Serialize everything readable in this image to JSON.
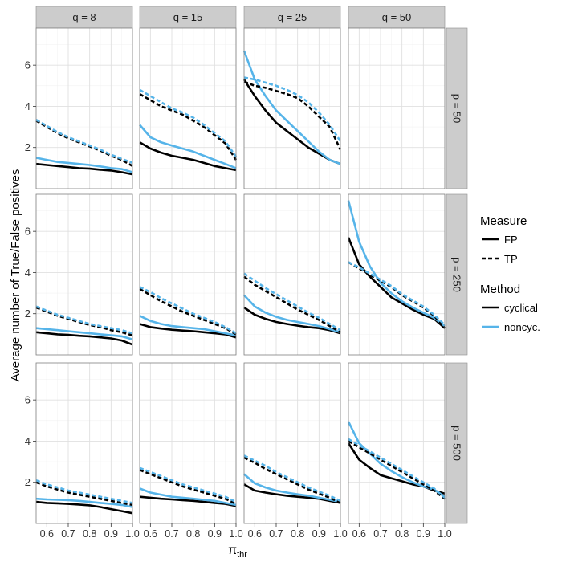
{
  "chart_data": {
    "type": "line",
    "title": "",
    "ylabel": "Average number of True/False positives",
    "xlabel_main": "π",
    "xlabel_sub": "thr",
    "xlim": [
      0.55,
      1.0
    ],
    "ylim": [
      0,
      7.8
    ],
    "x_ticks": [
      0.6,
      0.7,
      0.8,
      0.9,
      1.0
    ],
    "x_tick_labels": [
      "0.6",
      "0.7",
      "0.8",
      "0.9",
      "1.0"
    ],
    "y_ticks": [
      2,
      4,
      6
    ],
    "y_tick_labels": [
      "2",
      "4",
      "6"
    ],
    "col_labels": [
      "q = 8",
      "q = 15",
      "q = 25",
      "q = 50"
    ],
    "row_labels": [
      "p = 50",
      "p = 250",
      "p = 500"
    ],
    "x": [
      0.55,
      0.6,
      0.65,
      0.7,
      0.75,
      0.8,
      0.85,
      0.9,
      0.95,
      1.0
    ],
    "legend": {
      "measure_title": "Measure",
      "measure_items": [
        "FP",
        "TP"
      ],
      "method_title": "Method",
      "method_items": [
        "cyclical",
        "noncyc."
      ]
    },
    "colors": {
      "cyclical": "#000000",
      "noncyc": "#56B4E9"
    },
    "panels": [
      {
        "row": 0,
        "col": 0,
        "series": [
          {
            "method": "cyclical",
            "measure": "FP",
            "values": [
              1.2,
              1.15,
              1.1,
              1.05,
              1.0,
              0.97,
              0.92,
              0.88,
              0.8,
              0.7
            ]
          },
          {
            "method": "noncyc",
            "measure": "FP",
            "values": [
              1.5,
              1.4,
              1.3,
              1.25,
              1.2,
              1.15,
              1.08,
              1.0,
              0.95,
              0.8
            ]
          },
          {
            "method": "cyclical",
            "measure": "TP",
            "values": [
              3.3,
              3.0,
              2.7,
              2.45,
              2.25,
              2.05,
              1.85,
              1.6,
              1.4,
              1.1
            ]
          },
          {
            "method": "noncyc",
            "measure": "TP",
            "values": [
              3.35,
              3.05,
              2.75,
              2.5,
              2.3,
              2.1,
              1.9,
              1.65,
              1.45,
              1.25
            ]
          }
        ]
      },
      {
        "row": 0,
        "col": 1,
        "series": [
          {
            "method": "cyclical",
            "measure": "FP",
            "values": [
              2.25,
              1.95,
              1.75,
              1.6,
              1.5,
              1.4,
              1.25,
              1.1,
              1.0,
              0.9
            ]
          },
          {
            "method": "noncyc",
            "measure": "FP",
            "values": [
              3.1,
              2.5,
              2.25,
              2.1,
              1.95,
              1.8,
              1.6,
              1.4,
              1.2,
              1.0
            ]
          },
          {
            "method": "cyclical",
            "measure": "TP",
            "values": [
              4.6,
              4.3,
              4.0,
              3.8,
              3.6,
              3.3,
              3.0,
              2.6,
              2.2,
              1.4
            ]
          },
          {
            "method": "noncyc",
            "measure": "TP",
            "values": [
              4.8,
              4.5,
              4.2,
              3.9,
              3.7,
              3.45,
              3.1,
              2.7,
              2.3,
              1.55
            ]
          }
        ]
      },
      {
        "row": 0,
        "col": 2,
        "series": [
          {
            "method": "cyclical",
            "measure": "FP",
            "values": [
              5.3,
              4.5,
              3.8,
              3.2,
              2.8,
              2.4,
              2.0,
              1.7,
              1.4,
              1.2
            ]
          },
          {
            "method": "noncyc",
            "measure": "FP",
            "values": [
              6.7,
              5.3,
              4.5,
              3.8,
              3.3,
              2.8,
              2.3,
              1.8,
              1.4,
              1.2
            ]
          },
          {
            "method": "cyclical",
            "measure": "TP",
            "values": [
              5.2,
              5.0,
              4.9,
              4.75,
              4.6,
              4.4,
              4.0,
              3.5,
              3.0,
              1.9
            ]
          },
          {
            "method": "noncyc",
            "measure": "TP",
            "values": [
              5.4,
              5.3,
              5.15,
              5.0,
              4.8,
              4.55,
              4.2,
              3.7,
              3.1,
              2.3
            ]
          }
        ]
      },
      {
        "row": 0,
        "col": 3,
        "series": []
      },
      {
        "row": 1,
        "col": 0,
        "series": [
          {
            "method": "cyclical",
            "measure": "FP",
            "values": [
              1.1,
              1.05,
              1.0,
              0.97,
              0.93,
              0.9,
              0.85,
              0.8,
              0.7,
              0.5
            ]
          },
          {
            "method": "noncyc",
            "measure": "FP",
            "values": [
              1.3,
              1.25,
              1.2,
              1.15,
              1.1,
              1.05,
              1.0,
              0.95,
              0.9,
              0.75
            ]
          },
          {
            "method": "cyclical",
            "measure": "TP",
            "values": [
              2.3,
              2.1,
              1.9,
              1.75,
              1.6,
              1.45,
              1.35,
              1.2,
              1.1,
              0.95
            ]
          },
          {
            "method": "noncyc",
            "measure": "TP",
            "values": [
              2.35,
              2.15,
              1.95,
              1.8,
              1.65,
              1.5,
              1.4,
              1.3,
              1.2,
              1.05
            ]
          }
        ]
      },
      {
        "row": 1,
        "col": 1,
        "series": [
          {
            "method": "cyclical",
            "measure": "FP",
            "values": [
              1.5,
              1.35,
              1.28,
              1.22,
              1.18,
              1.15,
              1.1,
              1.05,
              1.0,
              0.85
            ]
          },
          {
            "method": "noncyc",
            "measure": "FP",
            "values": [
              1.9,
              1.65,
              1.5,
              1.4,
              1.35,
              1.3,
              1.25,
              1.15,
              1.05,
              0.95
            ]
          },
          {
            "method": "cyclical",
            "measure": "TP",
            "values": [
              3.2,
              2.9,
              2.6,
              2.35,
              2.1,
              1.9,
              1.7,
              1.5,
              1.3,
              1.0
            ]
          },
          {
            "method": "noncyc",
            "measure": "TP",
            "values": [
              3.3,
              3.05,
              2.75,
              2.5,
              2.25,
              2.0,
              1.8,
              1.6,
              1.35,
              1.05
            ]
          }
        ]
      },
      {
        "row": 1,
        "col": 2,
        "series": [
          {
            "method": "cyclical",
            "measure": "FP",
            "values": [
              2.3,
              1.95,
              1.75,
              1.6,
              1.5,
              1.42,
              1.35,
              1.3,
              1.2,
              1.05
            ]
          },
          {
            "method": "noncyc",
            "measure": "FP",
            "values": [
              2.9,
              2.35,
              2.05,
              1.85,
              1.7,
              1.6,
              1.5,
              1.4,
              1.25,
              1.1
            ]
          },
          {
            "method": "cyclical",
            "measure": "TP",
            "values": [
              3.8,
              3.4,
              3.1,
              2.8,
              2.5,
              2.2,
              1.95,
              1.7,
              1.4,
              1.1
            ]
          },
          {
            "method": "noncyc",
            "measure": "TP",
            "values": [
              3.95,
              3.6,
              3.25,
              2.95,
              2.65,
              2.35,
              2.05,
              1.8,
              1.5,
              1.2
            ]
          }
        ]
      },
      {
        "row": 1,
        "col": 3,
        "series": [
          {
            "method": "cyclical",
            "measure": "FP",
            "values": [
              5.7,
              4.4,
              3.8,
              3.3,
              2.8,
              2.5,
              2.2,
              1.95,
              1.75,
              1.3
            ]
          },
          {
            "method": "noncyc",
            "measure": "FP",
            "values": [
              7.5,
              5.5,
              4.3,
              3.5,
              3.0,
              2.6,
              2.3,
              2.05,
              1.8,
              1.4
            ]
          },
          {
            "method": "cyclical",
            "measure": "TP",
            "values": [
              4.5,
              4.2,
              3.9,
              3.6,
              3.3,
              2.9,
              2.6,
              2.3,
              1.9,
              1.3
            ]
          },
          {
            "method": "noncyc",
            "measure": "TP",
            "values": [
              4.5,
              4.25,
              3.95,
              3.65,
              3.35,
              2.95,
              2.65,
              2.35,
              1.95,
              1.45
            ]
          }
        ]
      },
      {
        "row": 2,
        "col": 0,
        "series": [
          {
            "method": "cyclical",
            "measure": "FP",
            "values": [
              1.05,
              1.0,
              0.98,
              0.95,
              0.92,
              0.88,
              0.8,
              0.7,
              0.6,
              0.5
            ]
          },
          {
            "method": "noncyc",
            "measure": "FP",
            "values": [
              1.2,
              1.17,
              1.15,
              1.13,
              1.1,
              1.05,
              1.0,
              0.95,
              0.9,
              0.8
            ]
          },
          {
            "method": "cyclical",
            "measure": "TP",
            "values": [
              2.0,
              1.8,
              1.65,
              1.5,
              1.4,
              1.3,
              1.2,
              1.1,
              1.0,
              0.9
            ]
          },
          {
            "method": "noncyc",
            "measure": "TP",
            "values": [
              2.1,
              1.9,
              1.75,
              1.6,
              1.5,
              1.4,
              1.3,
              1.2,
              1.1,
              1.0
            ]
          }
        ]
      },
      {
        "row": 2,
        "col": 1,
        "series": [
          {
            "method": "cyclical",
            "measure": "FP",
            "values": [
              1.3,
              1.25,
              1.2,
              1.17,
              1.13,
              1.1,
              1.05,
              1.0,
              0.95,
              0.85
            ]
          },
          {
            "method": "noncyc",
            "measure": "FP",
            "values": [
              1.7,
              1.5,
              1.4,
              1.3,
              1.25,
              1.2,
              1.15,
              1.1,
              1.0,
              0.9
            ]
          },
          {
            "method": "cyclical",
            "measure": "TP",
            "values": [
              2.6,
              2.4,
              2.2,
              2.0,
              1.8,
              1.65,
              1.5,
              1.35,
              1.2,
              0.95
            ]
          },
          {
            "method": "noncyc",
            "measure": "TP",
            "values": [
              2.7,
              2.5,
              2.3,
              2.1,
              1.9,
              1.75,
              1.6,
              1.45,
              1.3,
              1.05
            ]
          }
        ]
      },
      {
        "row": 2,
        "col": 2,
        "series": [
          {
            "method": "cyclical",
            "measure": "FP",
            "values": [
              1.9,
              1.6,
              1.5,
              1.42,
              1.35,
              1.3,
              1.25,
              1.2,
              1.1,
              1.0
            ]
          },
          {
            "method": "noncyc",
            "measure": "FP",
            "values": [
              2.4,
              1.95,
              1.75,
              1.6,
              1.5,
              1.42,
              1.35,
              1.25,
              1.15,
              1.05
            ]
          },
          {
            "method": "cyclical",
            "measure": "TP",
            "values": [
              3.2,
              2.95,
              2.65,
              2.4,
              2.15,
              1.9,
              1.65,
              1.45,
              1.25,
              1.0
            ]
          },
          {
            "method": "noncyc",
            "measure": "TP",
            "values": [
              3.3,
              3.05,
              2.8,
              2.5,
              2.25,
              2.0,
              1.75,
              1.55,
              1.35,
              1.1
            ]
          }
        ]
      },
      {
        "row": 2,
        "col": 3,
        "series": [
          {
            "method": "cyclical",
            "measure": "FP",
            "values": [
              3.9,
              3.1,
              2.7,
              2.35,
              2.2,
              2.05,
              1.9,
              1.8,
              1.6,
              1.45
            ]
          },
          {
            "method": "noncyc",
            "measure": "FP",
            "values": [
              4.95,
              3.9,
              3.4,
              2.9,
              2.55,
              2.25,
              2.0,
              1.8,
              1.65,
              1.3
            ]
          },
          {
            "method": "cyclical",
            "measure": "TP",
            "values": [
              4.0,
              3.7,
              3.4,
              3.1,
              2.8,
              2.5,
              2.2,
              1.9,
              1.6,
              1.2
            ]
          },
          {
            "method": "noncyc",
            "measure": "TP",
            "values": [
              4.1,
              3.8,
              3.5,
              3.2,
              2.9,
              2.6,
              2.3,
              2.0,
              1.7,
              1.25
            ]
          }
        ]
      }
    ]
  }
}
